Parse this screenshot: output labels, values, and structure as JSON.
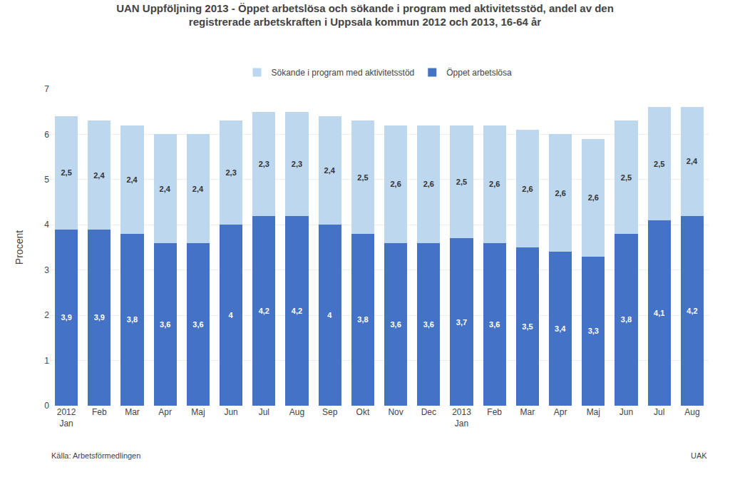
{
  "chart_data": {
    "type": "bar",
    "stacked": true,
    "title": "UAN Uppföljning 2013 - Öppet arbetslösa och sökande i program med aktivitetsstöd, andel av den",
    "subtitle": "registrerade arbetskraften i Uppsala kommun 2012 och 2013, 16-64 år",
    "ylabel": "Procent",
    "annotations": [
      "Källa: Arbetsförmedlingen",
      "UAK"
    ],
    "categories": [
      "2012\nJan",
      "Feb",
      "Mar",
      "Apr",
      "Maj",
      "Jun",
      "Jul",
      "Aug",
      "Sep",
      "Okt",
      "Nov",
      "Dec",
      "2013\nJan",
      "Feb",
      "Mar",
      "Apr",
      "Maj",
      "Jun",
      "Jul",
      "Aug"
    ],
    "series": [
      {
        "name": "Öppet arbetslösa",
        "color": "#4472C4",
        "values": [
          3.9,
          3.9,
          3.8,
          3.6,
          3.6,
          4.0,
          4.2,
          4.2,
          4.0,
          3.8,
          3.6,
          3.6,
          3.7,
          3.6,
          3.5,
          3.4,
          3.3,
          3.8,
          4.1,
          4.2
        ],
        "value_labels": [
          "3,9",
          "3,9",
          "3,8",
          "3,6",
          "3,6",
          "4",
          "4,2",
          "4,2",
          "4",
          "3,8",
          "3,6",
          "3,6",
          "3,7",
          "3,6",
          "3,5",
          "3,4",
          "3,3",
          "3,8",
          "4,1",
          "4,2"
        ]
      },
      {
        "name": "Sökande i program med aktivitetsstöd",
        "color": "#BDD7EE",
        "values": [
          2.5,
          2.4,
          2.4,
          2.4,
          2.4,
          2.3,
          2.3,
          2.3,
          2.4,
          2.5,
          2.6,
          2.6,
          2.5,
          2.6,
          2.6,
          2.6,
          2.6,
          2.5,
          2.5,
          2.4
        ],
        "value_labels": [
          "2,5",
          "2,4",
          "2,4",
          "2,4",
          "2,4",
          "2,3",
          "2,3",
          "2,3",
          "2,4",
          "2,5",
          "2,6",
          "2,6",
          "2,5",
          "2,6",
          "2,6",
          "2,6",
          "2,6",
          "2,5",
          "2,5",
          "2,4"
        ]
      }
    ],
    "data_labels": true,
    "ylim": [
      0,
      7
    ],
    "yticks": [
      0,
      1,
      2,
      3,
      4,
      5,
      6,
      7
    ],
    "grid": true,
    "legend": "upper center"
  }
}
